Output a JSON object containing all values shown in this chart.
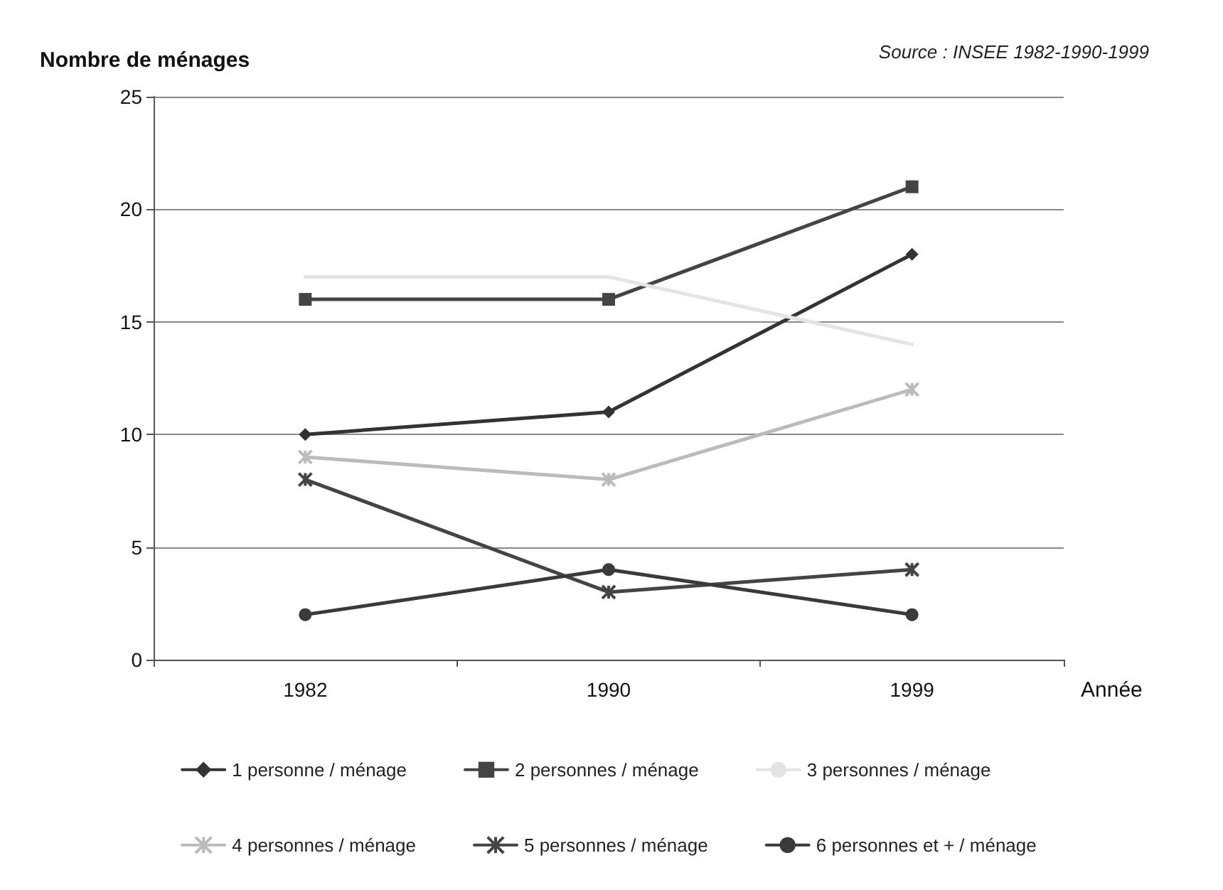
{
  "chart_data": {
    "type": "line",
    "ylabel": "Nombre de ménages",
    "xlabel": "Année",
    "annotations": [
      "Source : INSEE 1982-1990-1999"
    ],
    "categories": [
      "1982",
      "1990",
      "1999"
    ],
    "series": [
      {
        "name": "1 personne / ménage",
        "color": "#333333",
        "marker": "diamond",
        "values": [
          10,
          11,
          18
        ]
      },
      {
        "name": "2 personnes / ménage",
        "color": "#444444",
        "marker": "square",
        "values": [
          16,
          16,
          21
        ]
      },
      {
        "name": "3 personnes / ménage",
        "color": "#e4e4e4",
        "marker": "none",
        "values": [
          17,
          17,
          14
        ]
      },
      {
        "name": "4 personnes / ménage",
        "color": "#bbbbbb",
        "marker": "cross",
        "values": [
          9,
          8,
          12
        ]
      },
      {
        "name": "5 personnes / ménage",
        "color": "#444444",
        "marker": "cross",
        "values": [
          8,
          3,
          4
        ]
      },
      {
        "name": "6 personnes et + / ménage",
        "color": "#3a3a3a",
        "marker": "circle",
        "values": [
          2,
          4,
          2
        ]
      }
    ],
    "ylim": [
      0,
      25
    ],
    "yticks": [
      0,
      5,
      10,
      15,
      20,
      25
    ],
    "grid": "y",
    "legend": "bottom",
    "line_style": "solid"
  }
}
